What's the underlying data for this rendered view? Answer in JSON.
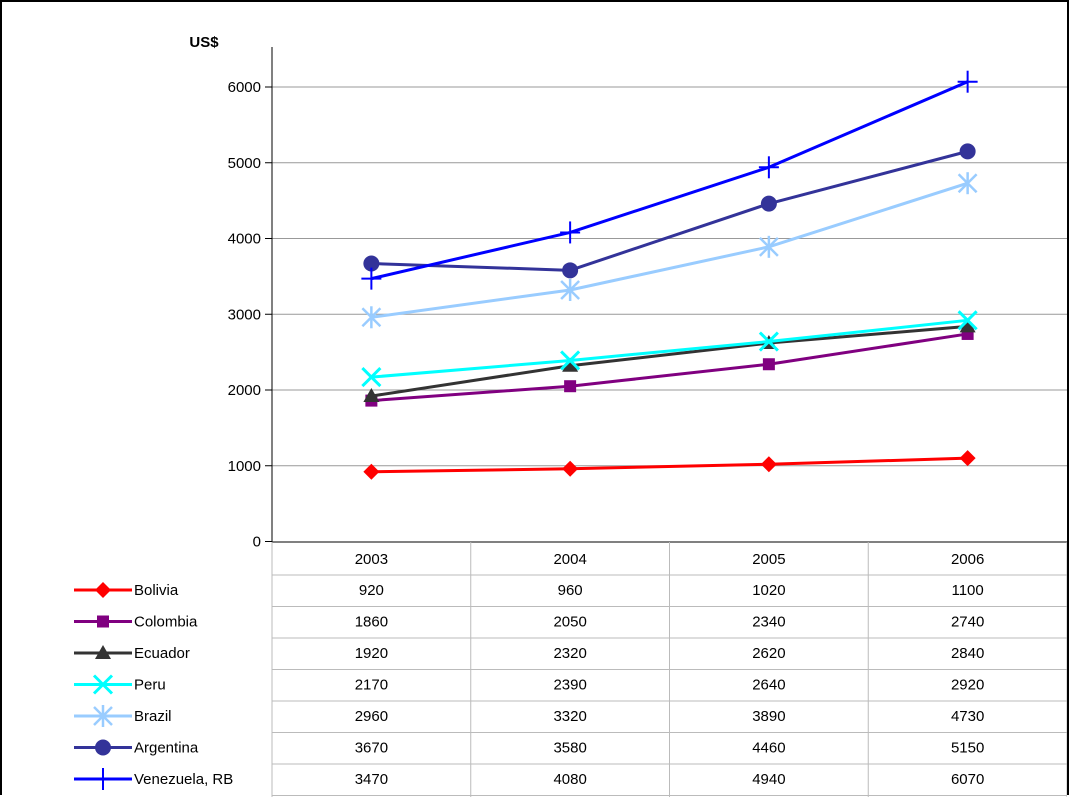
{
  "chart_data": {
    "type": "line",
    "ylabel": "US$",
    "xlabel": "",
    "ylim": [
      0,
      6000
    ],
    "yticks": [
      0,
      1000,
      2000,
      3000,
      4000,
      5000,
      6000
    ],
    "categories": [
      "2003",
      "2004",
      "2005",
      "2006"
    ],
    "grid": true,
    "legend_placement": "data table below chart",
    "series": [
      {
        "name": "Bolivia",
        "values": [
          920,
          960,
          1020,
          1100
        ],
        "display": [
          "920",
          "960",
          "1020",
          "1100"
        ],
        "color": "#ff0000",
        "marker": "diamond"
      },
      {
        "name": "Colombia",
        "values": [
          1860,
          2050,
          2340,
          2740
        ],
        "display": [
          "1860",
          "2050",
          "2340",
          "2740"
        ],
        "color": "#800080",
        "marker": "square"
      },
      {
        "name": "Ecuador",
        "values": [
          1920,
          2320,
          2620,
          2840
        ],
        "display": [
          "1920",
          "2320",
          "2620",
          "2840"
        ],
        "color": "#333333",
        "marker": "triangle"
      },
      {
        "name": "Peru",
        "values": [
          2170,
          2390,
          2640,
          2920
        ],
        "display": [
          "2170",
          "2390",
          "2640",
          "2920"
        ],
        "color": "#00ffff",
        "marker": "x"
      },
      {
        "name": "Brazil",
        "values": [
          2960,
          3320,
          3890,
          4730
        ],
        "display": [
          "2960",
          "3320",
          "3890",
          "4730"
        ],
        "color": "#99ccff",
        "marker": "star"
      },
      {
        "name": "Argentina",
        "values": [
          3670,
          3580,
          4460,
          5150
        ],
        "display": [
          "3670",
          "3580",
          "4460",
          "5150"
        ],
        "color": "#333399",
        "marker": "circle"
      },
      {
        "name": "Venezuela, RB",
        "values": [
          3470,
          4080,
          4940,
          6070
        ],
        "display": [
          "3470",
          "4080",
          "4940",
          "6070"
        ],
        "color": "#0000ff",
        "marker": "plus"
      }
    ]
  }
}
